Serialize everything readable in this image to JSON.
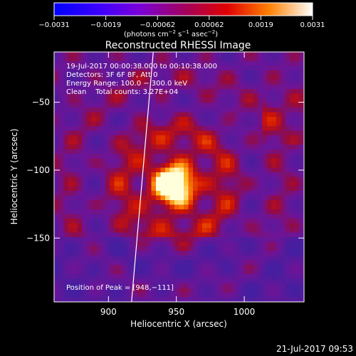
{
  "chart_data": {
    "type": "heatmap",
    "title": "Reconstructed RHESSI Image",
    "xlabel": "Heliocentric X (arcsec)",
    "ylabel": "Heliocentric Y (arcsec)",
    "xlim": [
      860,
      1044
    ],
    "ylim": [
      -197,
      -13
    ],
    "x_ticks": [
      900,
      950,
      1000
    ],
    "x_tick_labels": [
      "900",
      "950",
      "1000"
    ],
    "y_ticks": [
      -50,
      -100,
      -150
    ],
    "y_tick_labels": [
      "−50",
      "−100",
      "−150"
    ],
    "colorbar": {
      "range": [
        -0.0031,
        0.0031
      ],
      "tick_labels": [
        "−0.0031",
        "−0.0019",
        "−0.00062",
        "0.00062",
        "0.0019",
        "0.0031"
      ],
      "unit_base": "(photons cm",
      "unit_exp1": "−2",
      "unit_mid": " s",
      "unit_exp2": "−1",
      "unit_mid2": " asec",
      "unit_exp3": "−2",
      "unit_end": ")"
    },
    "info_lines": [
      "19-Jul-2017 00:00:38.000 to 00:10:38.000",
      "Detectors: 3F 6F 8F, Att 0",
      "Energy Range: 100.0 − 300.0 keV",
      "Clean    Total counts: 3.27E+04"
    ],
    "peak_text": "Position of Peak = [948,−111]",
    "peak": [
      948,
      -111
    ],
    "limb_line": [
      [
        933,
        -13
      ],
      [
        917,
        -197
      ]
    ],
    "grid_on": false
  },
  "timestamp": "21-Jul-2017 09:53"
}
